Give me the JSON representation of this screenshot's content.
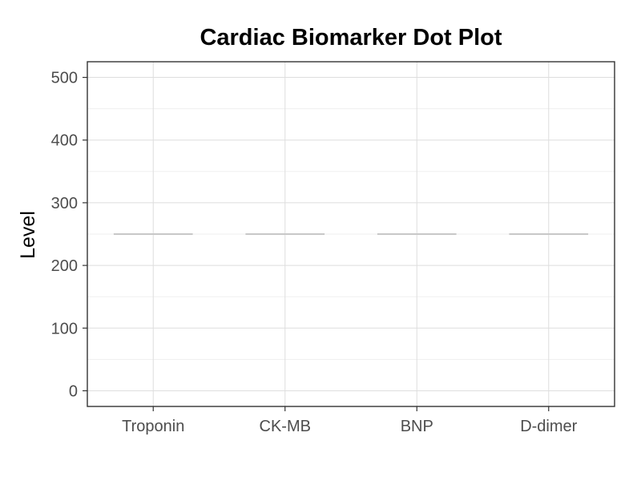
{
  "chart_data": {
    "type": "scatter",
    "title": "Cardiac Biomarker Dot Plot",
    "xlabel": "",
    "ylabel": "Level",
    "categories": [
      "Troponin",
      "CK-MB",
      "BNP",
      "D-dimer"
    ],
    "reference_lines": [
      {
        "category": "Troponin",
        "value": 250
      },
      {
        "category": "CK-MB",
        "value": 250
      },
      {
        "category": "BNP",
        "value": 250
      },
      {
        "category": "D-dimer",
        "value": 250
      }
    ],
    "series": [],
    "ylim": [
      -25,
      525
    ],
    "yticks": [
      0,
      100,
      200,
      300,
      400,
      500
    ],
    "ytick_labels": [
      "0",
      "100",
      "200",
      "300",
      "400",
      "500"
    ],
    "grid": true,
    "legend": "none",
    "colors": {
      "panel_border": "#333333",
      "grid_major": "#dedede",
      "grid_minor": "#efefef",
      "reference_line": "#c8c8c8",
      "tick_text": "#4d4d4d"
    }
  }
}
